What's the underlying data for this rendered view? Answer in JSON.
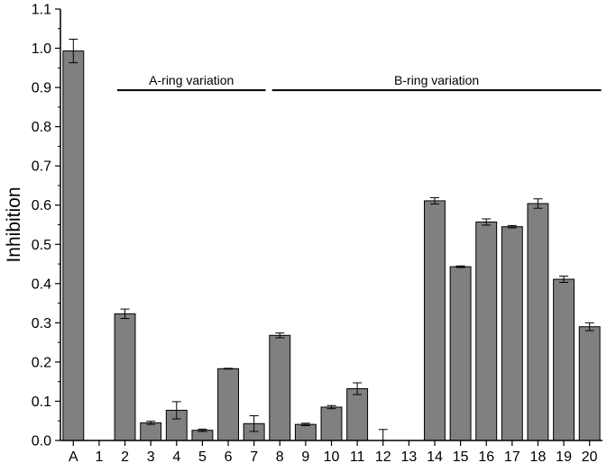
{
  "chart_data": {
    "type": "bar",
    "ylabel": "Inhibition",
    "xlabel": "",
    "ylim": [
      0,
      1.1
    ],
    "y_ticks": [
      "0.0",
      "0.1",
      "0.2",
      "0.3",
      "0.4",
      "0.5",
      "0.6",
      "0.7",
      "0.8",
      "0.9",
      "1.0",
      "1.1"
    ],
    "categories": [
      "A",
      "1",
      "2",
      "3",
      "4",
      "5",
      "6",
      "7",
      "8",
      "9",
      "10",
      "11",
      "12",
      "13",
      "14",
      "15",
      "16",
      "17",
      "18",
      "19",
      "20"
    ],
    "values": [
      0.993,
      0,
      0.323,
      0.045,
      0.077,
      0.026,
      0.183,
      0.043,
      0.268,
      0.041,
      0.085,
      0.132,
      0,
      0,
      0.611,
      0.443,
      0.557,
      0.545,
      0.604,
      0.411,
      0.29
    ],
    "errors": [
      0.03,
      0,
      0.012,
      0.004,
      0.022,
      0.003,
      0.001,
      0.02,
      0.006,
      0.003,
      0.004,
      0.015,
      0.028,
      0,
      0.008,
      0.002,
      0.008,
      0.003,
      0.012,
      0.008,
      0.01
    ],
    "bar_color": "#808080",
    "annotations": [
      {
        "text": "A-ring variation",
        "from": "2",
        "to": "7",
        "y": 0.9
      },
      {
        "text": "B-ring variation",
        "from": "8",
        "to": "20",
        "y": 0.9
      }
    ]
  }
}
